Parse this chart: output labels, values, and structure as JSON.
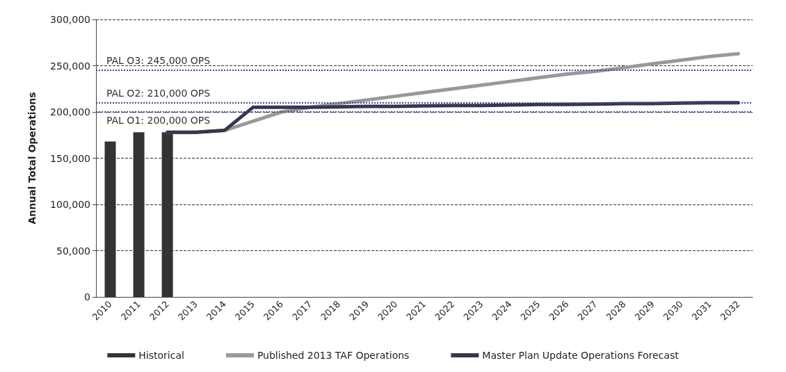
{
  "chart_data": {
    "type": "bar",
    "ylabel": "Annual Total Operations",
    "categories": [
      "2010",
      "2011",
      "2012",
      "2013",
      "2014",
      "2015",
      "2016",
      "2017",
      "2018",
      "2019",
      "2020",
      "2021",
      "2022",
      "2023",
      "2024",
      "2025",
      "2026",
      "2027",
      "2028",
      "2029",
      "2030",
      "2031",
      "2032"
    ],
    "series": [
      {
        "name": "Historical",
        "color": "#333333",
        "values": [
          168000,
          178000,
          178000,
          null,
          null,
          null,
          null,
          null,
          null,
          null,
          null,
          null,
          null,
          null,
          null,
          null,
          null,
          null,
          null,
          null,
          null,
          null,
          null
        ]
      },
      {
        "name": "Published 2013 TAF Operations",
        "type": "line",
        "color": "#999999",
        "values": [
          null,
          null,
          178000,
          178000,
          180000,
          190000,
          200000,
          205000,
          209000,
          213000,
          217000,
          221000,
          225000,
          229000,
          233000,
          237000,
          241000,
          244000,
          248000,
          252000,
          256000,
          260000,
          263000
        ]
      },
      {
        "name": "Master Plan Update Operations Forecast",
        "type": "line",
        "color": "#34384f",
        "values": [
          null,
          null,
          178000,
          178000,
          180000,
          205000,
          205000,
          205000,
          205500,
          206000,
          206000,
          206500,
          207000,
          207000,
          207500,
          208000,
          208000,
          208500,
          209000,
          209000,
          209500,
          210000,
          210000
        ]
      }
    ],
    "ylim": [
      0,
      300000
    ],
    "yticks": [
      0,
      {
        "value": 50000,
        "label": "50,000"
      },
      {
        "value": 100000,
        "label": "100,000"
      },
      {
        "value": 150000,
        "label": "150,000"
      },
      {
        "value": 200000,
        "label": "200,000"
      },
      {
        "value": 250000,
        "label": "250,000"
      },
      {
        "value": 300000,
        "label": "300,000"
      }
    ],
    "grid": "y",
    "legend": "bottom",
    "ref_lines": [
      {
        "axis": "y",
        "value": 245000,
        "label": "PAL O3: 245,000 OPS",
        "color": "#3b4a9a",
        "line_style": "dotted"
      },
      {
        "axis": "y",
        "value": 210000,
        "label": "PAL O2: 210,000 OPS",
        "color": "#3b4a9a",
        "line_style": "dotted"
      },
      {
        "axis": "y",
        "value": 200000,
        "label": "PAL O1: 200,000 OPS",
        "color": "#3b4a9a",
        "line_style": "dotted"
      }
    ]
  }
}
